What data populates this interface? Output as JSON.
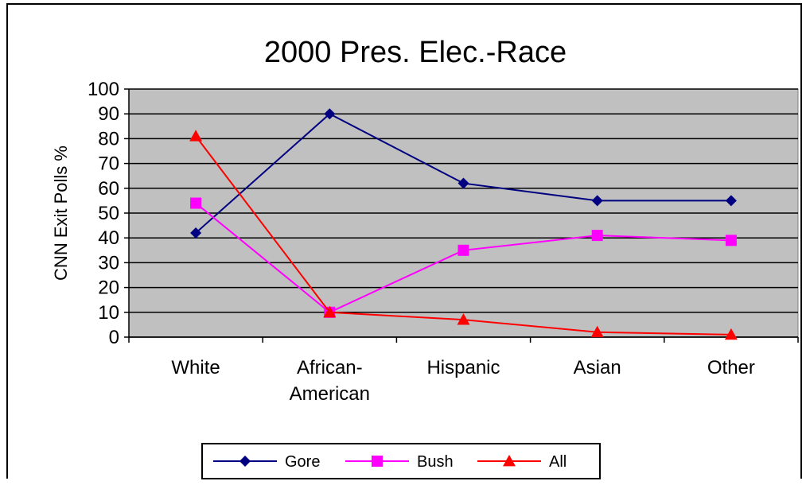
{
  "chart_data": {
    "type": "line",
    "title": "2000 Pres. Elec.-Race",
    "xlabel": "",
    "ylabel": "CNN Exit Polls %",
    "ylim": [
      0,
      100
    ],
    "yticks": [
      0,
      10,
      20,
      30,
      40,
      50,
      60,
      70,
      80,
      90,
      100
    ],
    "categories": [
      "White",
      "African-American",
      "Hispanic",
      "Asian",
      "Other"
    ],
    "category_lines": [
      [
        "White"
      ],
      [
        "African-",
        "American"
      ],
      [
        "Hispanic"
      ],
      [
        "Asian"
      ],
      [
        "Other"
      ]
    ],
    "grid": true,
    "legend_position": "bottom",
    "series": [
      {
        "name": "Gore",
        "values": [
          42,
          90,
          62,
          55,
          55
        ],
        "color": "#000080",
        "marker": "diamond"
      },
      {
        "name": "Bush",
        "values": [
          54,
          10,
          35,
          41,
          39
        ],
        "color": "#ff00ff",
        "marker": "square"
      },
      {
        "name": "All",
        "values": [
          81,
          10,
          7,
          2,
          1
        ],
        "color": "#ff0000",
        "marker": "triangle"
      }
    ],
    "plot_background": "#c0c0c0"
  }
}
